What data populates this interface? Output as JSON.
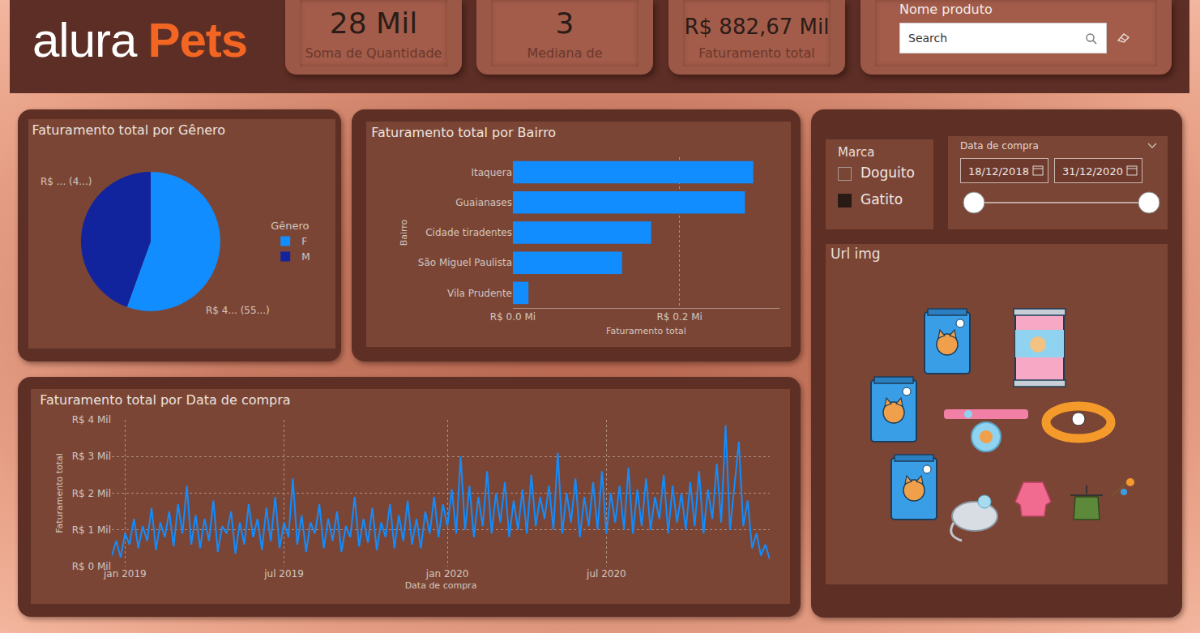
{
  "header": {
    "logo": {
      "text1": "alura",
      "text2": "Pets"
    }
  },
  "cards": [
    {
      "value": "28 Mil",
      "label": "Soma de Quantidade"
    },
    {
      "value": "3",
      "label": "Mediana de"
    },
    {
      "value": "R$ 882,67 Mil",
      "label": "Faturamento total"
    }
  ],
  "filters": {
    "product": {
      "title": "Nome produto",
      "placeholder": "Search"
    },
    "brand": {
      "title": "Marca",
      "options": [
        {
          "label": "Doguito",
          "selected": false
        },
        {
          "label": "Gatito",
          "selected": true
        }
      ]
    },
    "date": {
      "title": "Data de compra",
      "start": "18/12/2018",
      "end": "31/12/2020"
    }
  },
  "images": {
    "title": "Url img"
  },
  "chart_data": [
    {
      "type": "pie",
      "title": "Faturamento total por Gênero",
      "categories": [
        "F",
        "M"
      ],
      "values": [
        490000,
        392670
      ],
      "value_labels": [
        "R$ 4... (55...)",
        "R$ ... (4...)"
      ],
      "colors": [
        "#118DFF",
        "#12239E"
      ],
      "legend": "right",
      "legend_title": "Gênero",
      "data_labels": true
    },
    {
      "type": "bar",
      "title": "Faturamento total por Bairro",
      "orientation": "horizontal",
      "categories": [
        "Itaquera",
        "Guaianases",
        "Cidade tiradentes",
        "São Miguel Paulista",
        "Vila Prudente"
      ],
      "values": [
        288500,
        278500,
        166000,
        131000,
        18670
      ],
      "color": "#118DFF",
      "xlabel": "Faturamento total",
      "ylabel": "Bairro",
      "xlim": [
        0,
        320000
      ],
      "xticks": [
        {
          "value": 0,
          "label": "R$ 0.0 Mi"
        },
        {
          "value": 200000,
          "label": "R$ 0.2 Mi"
        }
      ],
      "grid": true
    },
    {
      "type": "line",
      "title": "Faturamento total por Data de compra",
      "categories": [
        null,
        null,
        null,
        "jan 2019",
        null,
        null,
        null,
        null,
        null,
        null,
        null,
        null,
        null,
        null,
        null,
        null,
        null,
        null,
        null,
        null,
        null,
        null,
        null,
        null,
        null,
        null,
        null,
        null,
        null,
        null,
        null,
        null,
        null,
        null,
        null,
        null,
        null,
        null,
        null,
        "jul 2019",
        null,
        null,
        null,
        null,
        null,
        null,
        null,
        null,
        null,
        null,
        null,
        null,
        null,
        null,
        null,
        null,
        null,
        null,
        null,
        null,
        null,
        null,
        null,
        null,
        null,
        null,
        null,
        null,
        null,
        null,
        null,
        null,
        null,
        null,
        null,
        null,
        "jan 2020",
        null,
        null,
        null,
        null,
        null,
        null,
        null,
        null,
        null,
        null,
        null,
        null,
        null,
        null,
        null,
        null,
        null,
        null,
        null,
        null,
        null,
        null,
        null,
        null,
        null,
        null,
        null,
        null,
        null,
        null,
        null,
        null,
        null,
        null,
        null,
        "jul 2020",
        null,
        null,
        null,
        null,
        null,
        null,
        null,
        null,
        null,
        null,
        null,
        null,
        null,
        null,
        null,
        null,
        null,
        null,
        null,
        null,
        null,
        null,
        null,
        null,
        null,
        null,
        null,
        null,
        null,
        null,
        null,
        null,
        null,
        null,
        null,
        null,
        null
      ],
      "values": [
        300,
        700,
        250,
        900,
        600,
        1300,
        500,
        1100,
        700,
        1600,
        450,
        1200,
        800,
        1500,
        550,
        1700,
        900,
        2200,
        600,
        1400,
        500,
        1300,
        700,
        1800,
        400,
        1100,
        900,
        1500,
        350,
        1200,
        600,
        1700,
        800,
        1300,
        450,
        1600,
        700,
        1900,
        500,
        1200,
        800,
        2400,
        600,
        1400,
        400,
        1200,
        900,
        1700,
        500,
        1300,
        700,
        1500,
        400,
        1100,
        800,
        1900,
        550,
        1300,
        650,
        1600,
        450,
        1200,
        800,
        1700,
        500,
        1400,
        700,
        1800,
        600,
        1300,
        500,
        1500,
        900,
        1900,
        800,
        1700,
        1100,
        2100,
        900,
        3000,
        1000,
        2200,
        800,
        1900,
        1100,
        2600,
        900,
        2000,
        1200,
        2300,
        800,
        1800,
        1000,
        2100,
        900,
        2500,
        1100,
        1900,
        1300,
        2200,
        1000,
        3100,
        900,
        2000,
        1200,
        2400,
        800,
        1900,
        1100,
        2300,
        1000,
        2600,
        900,
        2000,
        1200,
        2200,
        1000,
        2700,
        900,
        2100,
        1100,
        2400,
        1000,
        1900,
        1300,
        2500,
        900,
        2200,
        1200,
        2000,
        1000,
        2300,
        1100,
        2600,
        900,
        2100,
        1300,
        2800,
        1200,
        3850,
        1000,
        2200,
        3400,
        1100,
        1800,
        500,
        900,
        300,
        600,
        200
      ],
      "color": "#118DFF",
      "xlabel": "Data de compra",
      "ylabel": "Faturamento total",
      "ylim": [
        0,
        4000
      ],
      "yticks": [
        {
          "value": 0,
          "label": "R$ 0 Mil"
        },
        {
          "value": 1000,
          "label": "R$ 1 Mil"
        },
        {
          "value": 2000,
          "label": "R$ 2 Mil"
        },
        {
          "value": 3000,
          "label": "R$ 3 Mil"
        },
        {
          "value": 4000,
          "label": "R$ 4 Mil"
        }
      ],
      "grid": true
    }
  ]
}
